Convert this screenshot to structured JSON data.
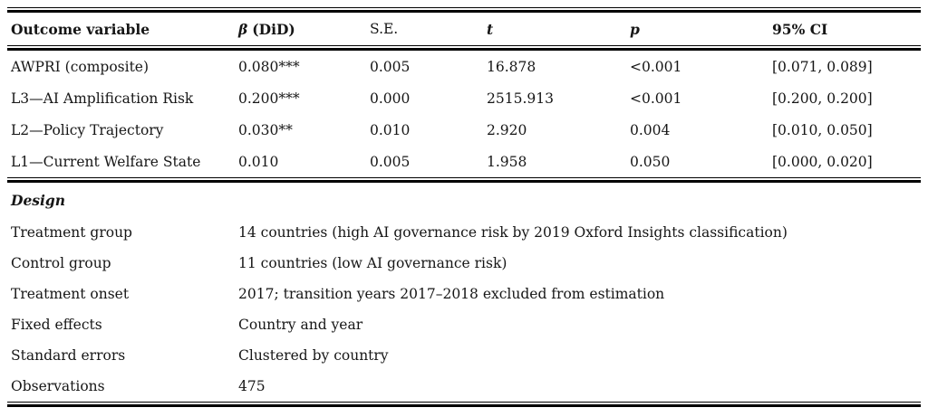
{
  "stats_table": {
    "header": {
      "outcome": "Outcome variable",
      "beta_symbol": "β",
      "beta_rest": "(DiD)",
      "se": "S.E.",
      "t": "t",
      "p": "p",
      "ci": "95% CI"
    },
    "rows": [
      {
        "outcome": "AWPRI (composite)",
        "beta": "0.080***",
        "se": "0.005",
        "t": "16.878",
        "p": "<0.001",
        "ci": "[0.071, 0.089]"
      },
      {
        "outcome": "L3—AI Amplification Risk",
        "beta": "0.200***",
        "se": "0.000",
        "t": "2515.913",
        "p": "<0.001",
        "ci": "[0.200, 0.200]"
      },
      {
        "outcome": "L2—Policy Trajectory",
        "beta": "0.030**",
        "se": "0.010",
        "t": "2.920",
        "p": "0.004",
        "ci": "[0.010, 0.050]"
      },
      {
        "outcome": "L1—Current Welfare State",
        "beta": "0.010",
        "se": "0.005",
        "t": "1.958",
        "p": "0.050",
        "ci": "[0.000, 0.020]"
      }
    ]
  },
  "design": {
    "heading": "Design",
    "rows": [
      {
        "label": "Treatment group",
        "value": "14 countries (high AI governance risk by 2019 Oxford Insights classification)"
      },
      {
        "label": "Control group",
        "value": "11 countries (low AI governance risk)"
      },
      {
        "label": "Treatment onset",
        "value": "2017; transition years 2017–2018 excluded from estimation"
      },
      {
        "label": "Fixed effects",
        "value": "Country and year"
      },
      {
        "label": "Standard errors",
        "value": "Clustered by country"
      },
      {
        "label": "Observations",
        "value": "475"
      }
    ]
  },
  "colors": {
    "text": "#161616",
    "rule": "#000000",
    "background": "#ffffff"
  }
}
